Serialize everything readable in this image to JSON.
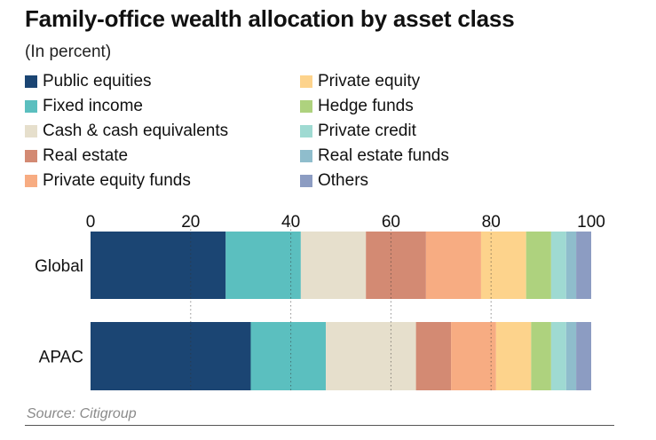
{
  "title": "Family-office wealth allocation by asset class",
  "subtitle": "(In percent)",
  "source": "Source: Citigroup",
  "legend": [
    {
      "label": "Public equities",
      "color": "#1b4573"
    },
    {
      "label": "Private equity",
      "color": "#fdd38c"
    },
    {
      "label": "Fixed income",
      "color": "#5bbfbf"
    },
    {
      "label": "Hedge funds",
      "color": "#aed27e"
    },
    {
      "label": "Cash & cash equivalents",
      "color": "#e6dfcc"
    },
    {
      "label": "Private credit",
      "color": "#9fdad2"
    },
    {
      "label": "Real estate",
      "color": "#d38a73"
    },
    {
      "label": "Real estate funds",
      "color": "#8fbdcc"
    },
    {
      "label": "Private equity funds",
      "color": "#f7ac82"
    },
    {
      "label": "Others",
      "color": "#8c9cc2"
    }
  ],
  "chart_data": {
    "type": "bar",
    "orientation": "horizontal",
    "stacked": true,
    "title": "Family-office wealth allocation by asset class",
    "subtitle": "(In percent)",
    "categories": [
      "Global",
      "APAC"
    ],
    "xlim": [
      0,
      100
    ],
    "xticks": [
      0,
      20,
      40,
      60,
      80,
      100
    ],
    "grid": "dotted vertical",
    "series": [
      {
        "name": "Public equities",
        "color": "#1b4573",
        "values": [
          27,
          32
        ]
      },
      {
        "name": "Fixed income",
        "color": "#5bbfbf",
        "values": [
          15,
          15
        ]
      },
      {
        "name": "Cash & cash equivalents",
        "color": "#e6dfcc",
        "values": [
          13,
          18
        ]
      },
      {
        "name": "Real estate",
        "color": "#d38a73",
        "values": [
          12,
          7
        ]
      },
      {
        "name": "Private equity funds",
        "color": "#f7ac82",
        "values": [
          11,
          9
        ]
      },
      {
        "name": "Private equity",
        "color": "#fdd38c",
        "values": [
          9,
          7
        ]
      },
      {
        "name": "Hedge funds",
        "color": "#aed27e",
        "values": [
          5,
          4
        ]
      },
      {
        "name": "Private credit",
        "color": "#9fdad2",
        "values": [
          3,
          3
        ]
      },
      {
        "name": "Real estate funds",
        "color": "#8fbdcc",
        "values": [
          2,
          2
        ]
      },
      {
        "name": "Others",
        "color": "#8c9cc2",
        "values": [
          3,
          3
        ]
      }
    ]
  }
}
